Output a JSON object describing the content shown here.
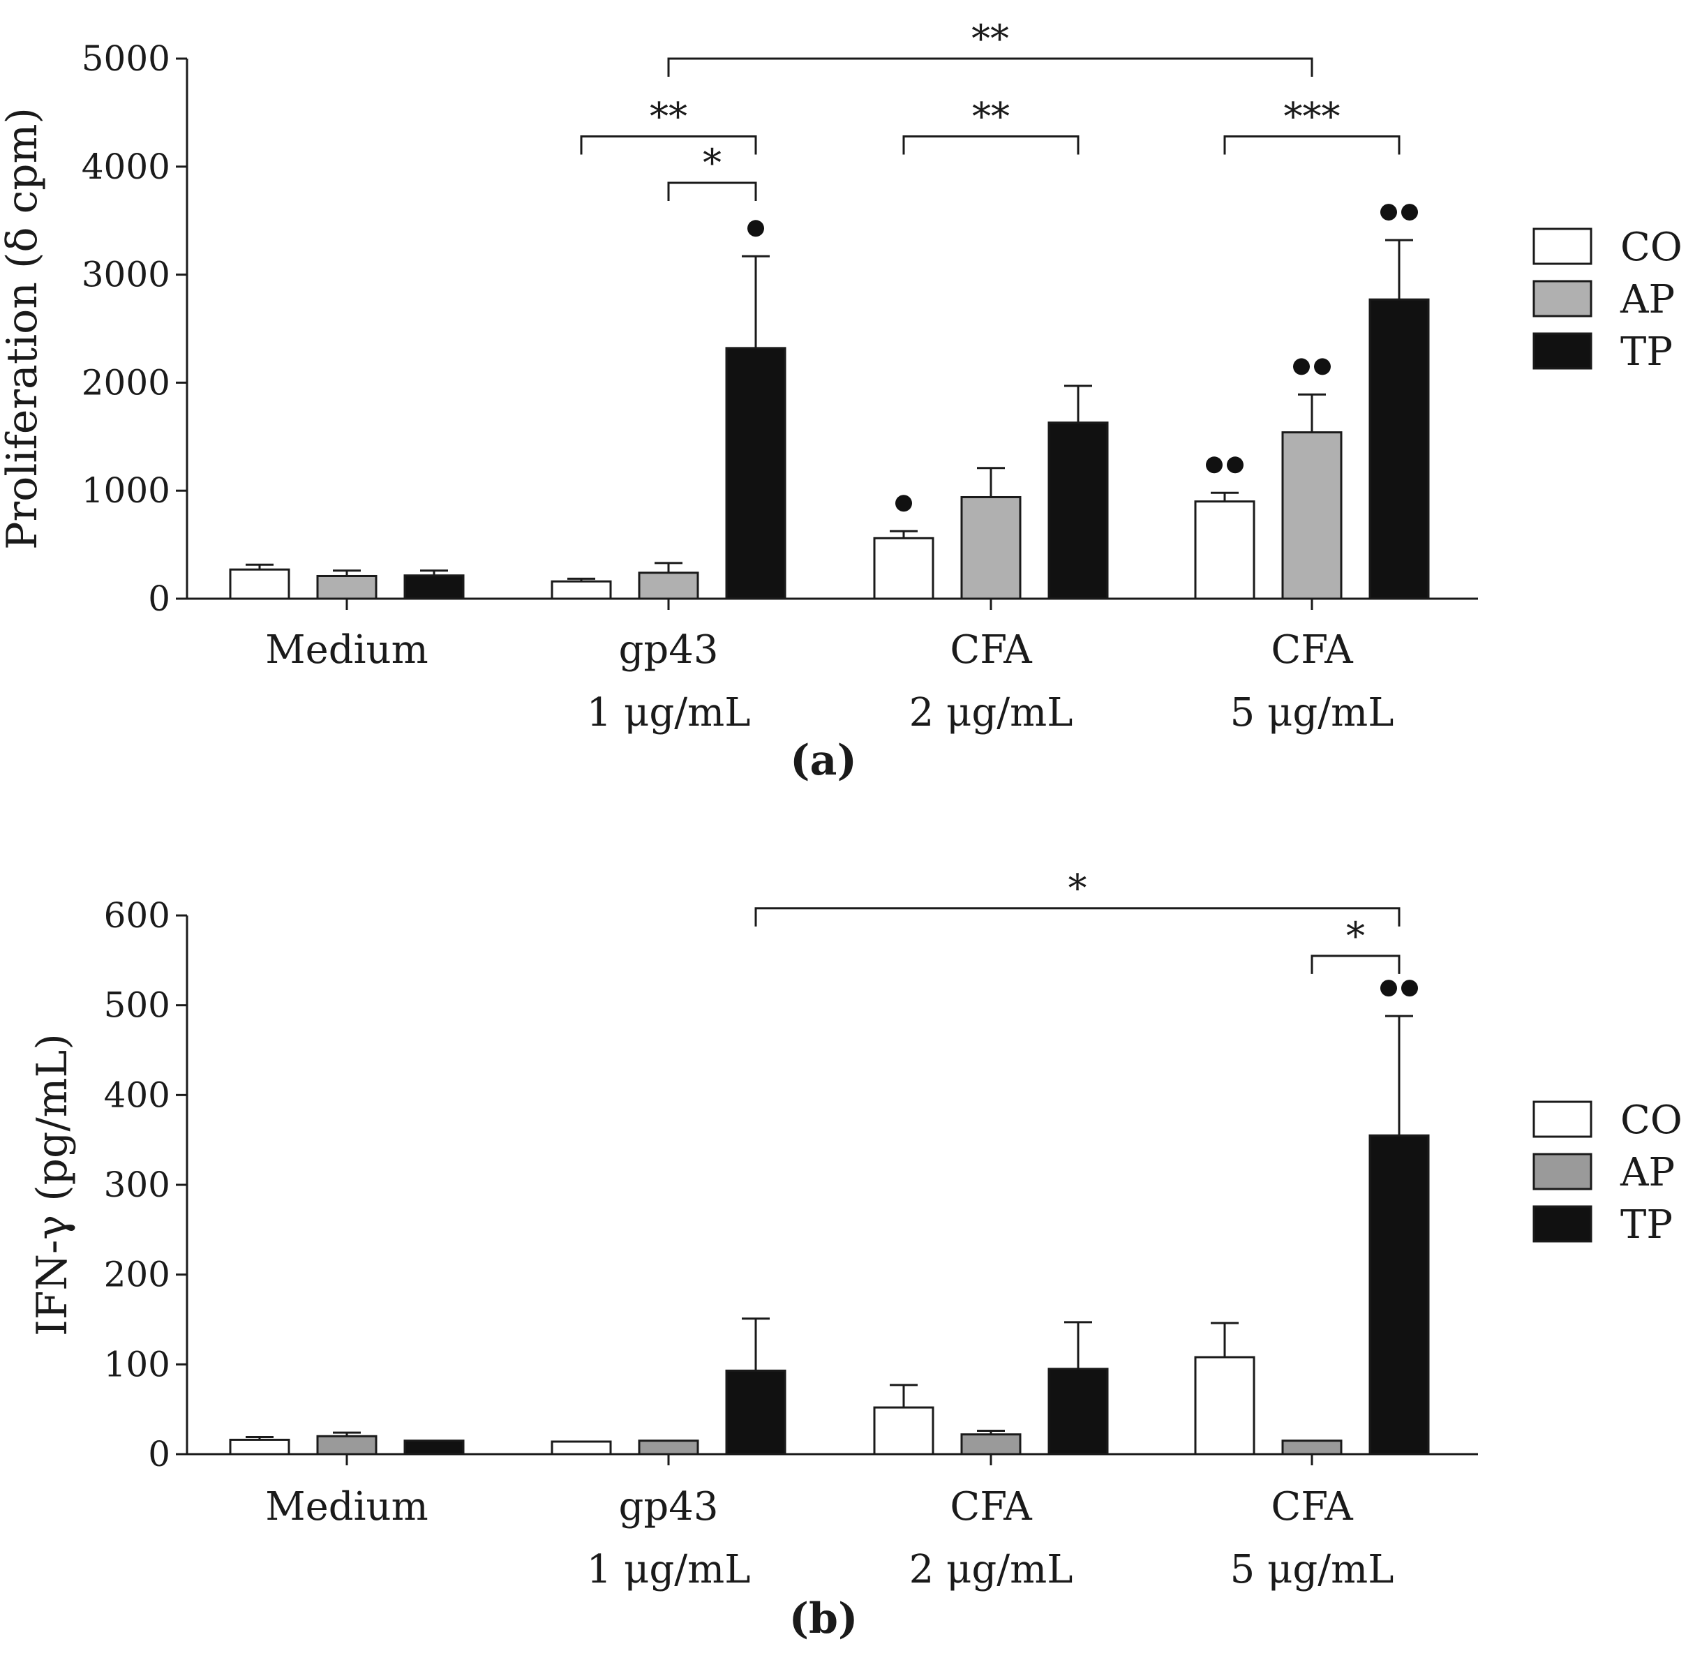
{
  "chart_data": [
    {
      "panel": "(a)",
      "type": "bar",
      "ylabel": "Proliferation (δ cpm)",
      "ylim": [
        0,
        5000
      ],
      "yticks": [
        0,
        1000,
        2000,
        3000,
        4000,
        5000
      ],
      "categories": [
        {
          "line1": "Medium",
          "line2": ""
        },
        {
          "line1": "gp43",
          "line2": "1 μg/mL"
        },
        {
          "line1": "CFA",
          "line2": "2 μg/mL"
        },
        {
          "line1": "CFA",
          "line2": "5 μg/mL"
        }
      ],
      "series": [
        {
          "name": "CO",
          "color": "#ffffff",
          "values": [
            270,
            160,
            560,
            900
          ],
          "errors": [
            45,
            25,
            65,
            80
          ]
        },
        {
          "name": "AP",
          "color": "#b0b0b0",
          "values": [
            210,
            240,
            940,
            1540
          ],
          "errors": [
            50,
            90,
            270,
            350
          ]
        },
        {
          "name": "TP",
          "color": "#111111",
          "values": [
            215,
            2320,
            1630,
            2770
          ],
          "errors": [
            45,
            850,
            340,
            550
          ]
        }
      ],
      "markers": [
        {
          "category": 1,
          "series": 2,
          "dots": 1
        },
        {
          "category": 2,
          "series": 0,
          "dots": 1
        },
        {
          "category": 3,
          "series": 0,
          "dots": 2
        },
        {
          "category": 3,
          "series": 1,
          "dots": 2
        },
        {
          "category": 3,
          "series": 2,
          "dots": 2
        }
      ],
      "significance": [
        {
          "from": {
            "category": 1,
            "series": 1
          },
          "to": {
            "category": 1,
            "series": 2
          },
          "y": 3850,
          "label": "*"
        },
        {
          "from": {
            "category": 1,
            "series": 0
          },
          "to": {
            "category": 1,
            "series": 2
          },
          "y": 4280,
          "label": "**"
        },
        {
          "from": {
            "category": 2,
            "series": 0
          },
          "to": {
            "category": 2,
            "series": 2
          },
          "y": 4280,
          "label": "**"
        },
        {
          "from": {
            "category": 3,
            "series": 0
          },
          "to": {
            "category": 3,
            "series": 2
          },
          "y": 4280,
          "label": "***"
        },
        {
          "from": {
            "category": 1,
            "series": 1
          },
          "to": {
            "category": 3,
            "series": 1
          },
          "y": 5000,
          "label": "**"
        }
      ]
    },
    {
      "panel": "(b)",
      "type": "bar",
      "ylabel": "IFN-γ (pg/mL)",
      "ylim": [
        0,
        600
      ],
      "yticks": [
        0,
        100,
        200,
        300,
        400,
        500,
        600
      ],
      "categories": [
        {
          "line1": "Medium",
          "line2": ""
        },
        {
          "line1": "gp43",
          "line2": "1 μg/mL"
        },
        {
          "line1": "CFA",
          "line2": "2 μg/mL"
        },
        {
          "line1": "CFA",
          "line2": "5 μg/mL"
        }
      ],
      "series": [
        {
          "name": "CO",
          "color": "#ffffff",
          "values": [
            16,
            14,
            52,
            108
          ],
          "errors": [
            3,
            0,
            25,
            38
          ]
        },
        {
          "name": "AP",
          "color": "#9a9a9a",
          "values": [
            20,
            15,
            22,
            15
          ],
          "errors": [
            4,
            0,
            4,
            0
          ]
        },
        {
          "name": "TP",
          "color": "#111111",
          "values": [
            15,
            93,
            95,
            355
          ],
          "errors": [
            0,
            58,
            52,
            133
          ]
        }
      ],
      "markers": [
        {
          "category": 3,
          "series": 2,
          "dots": 2
        }
      ],
      "significance": [
        {
          "from": {
            "category": 3,
            "series": 1
          },
          "to": {
            "category": 3,
            "series": 2
          },
          "y": 555,
          "label": "*"
        },
        {
          "from": {
            "category": 1,
            "series": 2
          },
          "to": {
            "category": 3,
            "series": 2
          },
          "y": 608,
          "label": "*"
        }
      ]
    }
  ]
}
